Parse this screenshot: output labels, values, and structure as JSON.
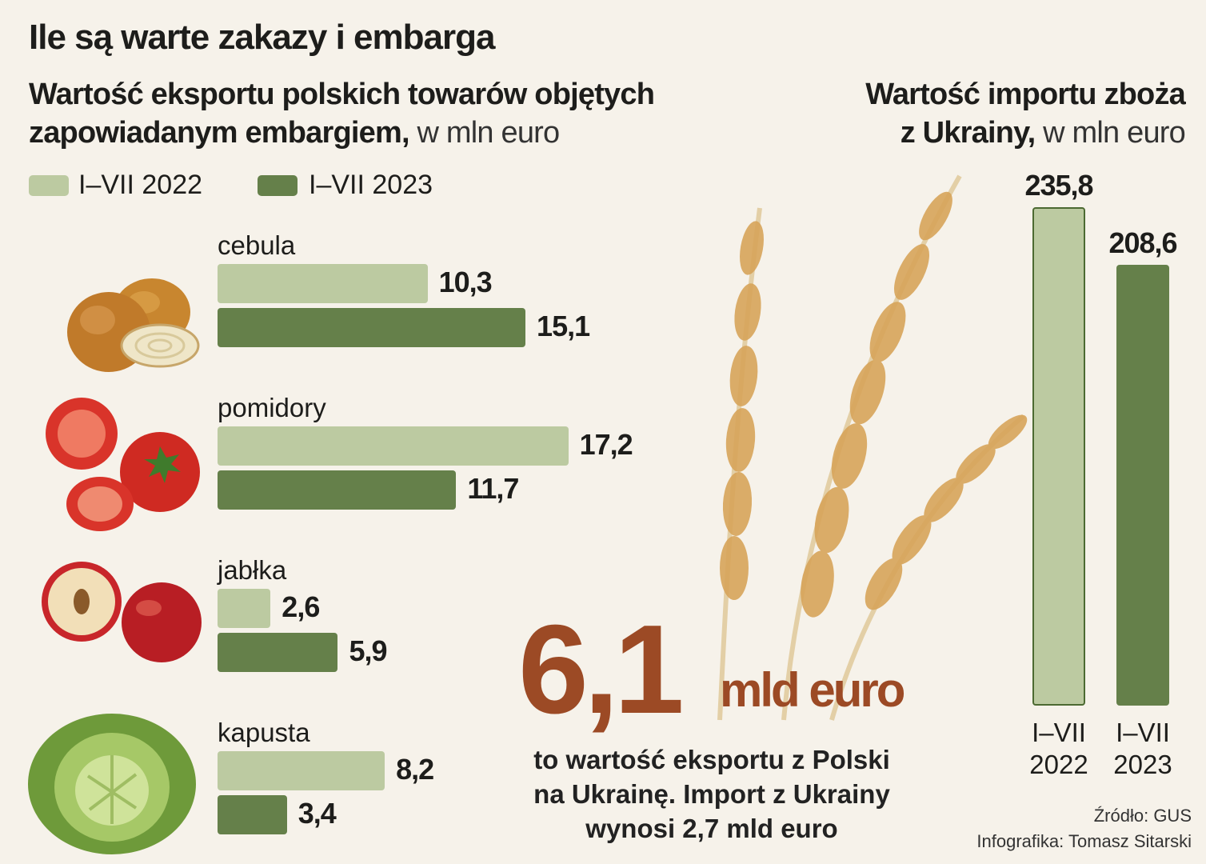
{
  "title": "Ile są warte zakazy i embarga",
  "export_chart": {
    "subtitle_bold_1": "Wartość eksportu polskich towarów objętych",
    "subtitle_bold_2": "zapowiadanym embargiem,",
    "subtitle_unit": " w mln euro",
    "legend": [
      "I–VII 2022",
      "I–VII 2023"
    ]
  },
  "import_chart": {
    "subtitle_bold_1": "Wartość importu zboża",
    "subtitle_bold_2": "z Ukrainy,",
    "subtitle_unit": " w mln euro"
  },
  "colors": {
    "light": "#bccaa1",
    "dark": "#65804a",
    "accent": "#9c4a25",
    "background": "#f6f2ea"
  },
  "chart_data": [
    {
      "type": "bar",
      "orientation": "horizontal",
      "categories": [
        "cebula",
        "pomidory",
        "jabłka",
        "kapusta"
      ],
      "series": [
        {
          "name": "I–VII 2022",
          "values": [
            10.3,
            17.2,
            2.6,
            8.2
          ],
          "labels": [
            "10,3",
            "17,2",
            "2,6",
            "8,2"
          ]
        },
        {
          "name": "I–VII 2023",
          "values": [
            15.1,
            11.7,
            5.9,
            3.4
          ],
          "labels": [
            "15,1",
            "11,7",
            "5,9",
            "3,4"
          ]
        }
      ]
    },
    {
      "type": "bar",
      "orientation": "vertical",
      "categories": [
        "I–VII 2022",
        "I–VII 2023"
      ],
      "values": [
        235.8,
        208.6
      ],
      "labels": [
        "235,8",
        "208,6"
      ]
    }
  ],
  "highlight": {
    "number": "6,1",
    "unit": "mld euro",
    "desc_1": "to wartość eksportu z Polski",
    "desc_2": "na Ukrainę. Import z Ukrainy",
    "desc_3": "wynosi 2,7 mld euro"
  },
  "source": "Źródło: GUS",
  "credit": "Infografika: Tomasz Sitarski",
  "icons": [
    "onion-icon",
    "tomato-icon",
    "apple-icon",
    "cabbage-icon",
    "wheat-icon"
  ]
}
